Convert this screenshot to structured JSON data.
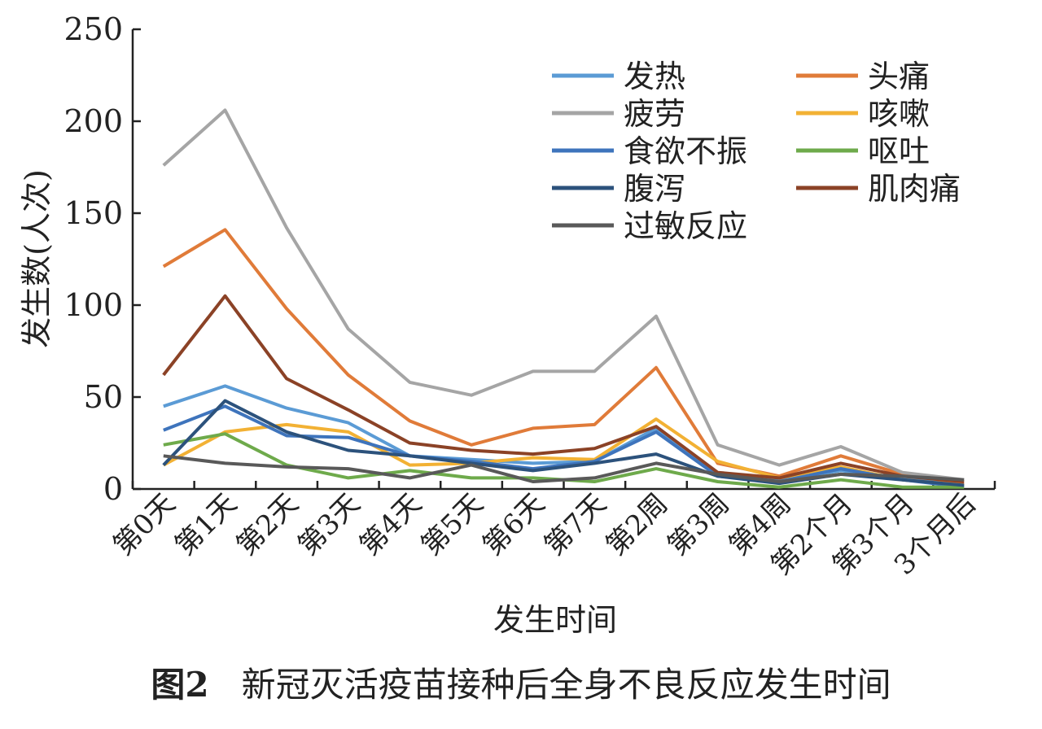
{
  "chart_data": {
    "type": "line",
    "ylabel": "发生数(人次)",
    "xlabel": "发生时间",
    "ylim": [
      0,
      250
    ],
    "yticks": [
      0,
      50,
      100,
      150,
      200,
      250
    ],
    "categories": [
      "第0天",
      "第1天",
      "第2天",
      "第3天",
      "第4天",
      "第5天",
      "第6天",
      "第7天",
      "第2周",
      "第3周",
      "第4周",
      "第2个月",
      "第3个月",
      "3个月后"
    ],
    "series": [
      {
        "name": "发热",
        "color": "#5b9bd5",
        "values": [
          45,
          56,
          44,
          36,
          18,
          16,
          14,
          15,
          33,
          8,
          5,
          10,
          6,
          2
        ]
      },
      {
        "name": "头痛",
        "color": "#e07b39",
        "values": [
          121,
          141,
          98,
          62,
          37,
          24,
          33,
          35,
          66,
          14,
          7,
          18,
          8,
          3
        ]
      },
      {
        "name": "疲劳",
        "color": "#a5a5a5",
        "values": [
          176,
          206,
          142,
          87,
          58,
          51,
          64,
          64,
          94,
          24,
          13,
          23,
          9,
          5
        ]
      },
      {
        "name": "咳嗽",
        "color": "#f2b134",
        "values": [
          13,
          31,
          35,
          31,
          13,
          14,
          17,
          16,
          38,
          15,
          6,
          12,
          5,
          2
        ]
      },
      {
        "name": "食欲不振",
        "color": "#3e74bc",
        "values": [
          32,
          45,
          29,
          28,
          18,
          15,
          11,
          15,
          31,
          7,
          4,
          11,
          5,
          1
        ]
      },
      {
        "name": "呕吐",
        "color": "#6eaa4b",
        "values": [
          24,
          30,
          13,
          6,
          10,
          6,
          6,
          4,
          11,
          4,
          1,
          5,
          1,
          1
        ]
      },
      {
        "name": "腹泻",
        "color": "#2c527c",
        "values": [
          13,
          48,
          31,
          21,
          18,
          14,
          10,
          14,
          19,
          7,
          3,
          8,
          5,
          2
        ]
      },
      {
        "name": "肌肉痛",
        "color": "#8b4226",
        "values": [
          62,
          105,
          60,
          43,
          25,
          21,
          19,
          22,
          34,
          9,
          6,
          14,
          7,
          4
        ]
      },
      {
        "name": "过敏反应",
        "color": "#595959",
        "values": [
          18,
          14,
          12,
          11,
          6,
          13,
          4,
          6,
          14,
          8,
          4,
          8,
          7,
          5
        ]
      }
    ]
  },
  "caption": {
    "figure_no": "图2",
    "text": "新冠灭活疫苗接种后全身不良反应发生时间"
  }
}
